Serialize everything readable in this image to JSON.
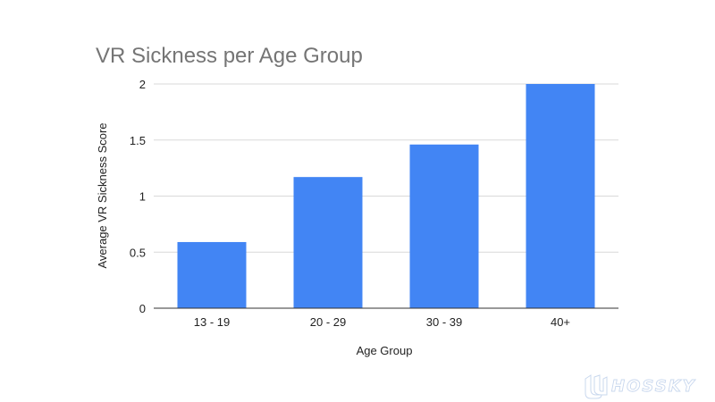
{
  "chart_data": {
    "type": "bar",
    "title": "VR Sickness per Age Group",
    "xlabel": "Age Group",
    "ylabel": "Average VR Sickness Score",
    "categories": [
      "13 - 19",
      "20 - 29",
      "30 - 39",
      "40+"
    ],
    "values": [
      0.59,
      1.17,
      1.46,
      2.0
    ],
    "ylim": [
      0,
      2
    ],
    "yticks": [
      "0",
      "0.5",
      "1",
      "1.5",
      "2"
    ],
    "grid": true,
    "legend": "none",
    "bar_color": "#4285f4"
  },
  "colors": {
    "gridline": "#d9d9d9",
    "baseline": "#333333"
  },
  "watermark": {
    "text": "HOSSKY",
    "icon": "hosky-logo-icon"
  }
}
